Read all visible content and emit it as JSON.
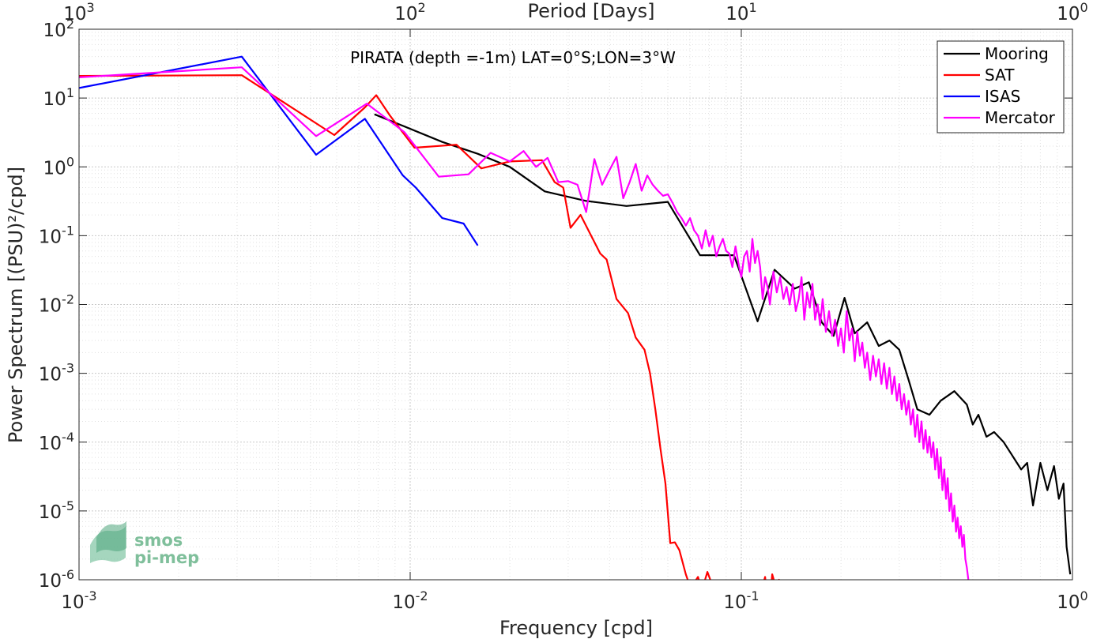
{
  "chart_data": {
    "type": "line",
    "x_scale": "log",
    "y_scale": "log",
    "xlim": [
      0.001,
      1
    ],
    "ylim": [
      1e-06,
      100
    ],
    "grid": true,
    "legend_placement": "top-right",
    "xlabel": "Frequency [cpd]",
    "ylabel": "Power Spectrum [(PSU)²/cpd]",
    "top_axis_label": "Period [Days]",
    "annotation": "PIRATA (depth =-1m) LAT=0°S;LON=3°W",
    "x_ticks": [
      {
        "value": 0.001,
        "base": "10",
        "exp": "-3"
      },
      {
        "value": 0.01,
        "base": "10",
        "exp": "-2"
      },
      {
        "value": 0.1,
        "base": "10",
        "exp": "-1"
      },
      {
        "value": 1,
        "base": "10",
        "exp": "0"
      }
    ],
    "top_ticks": [
      {
        "value": 1000,
        "base": "10",
        "exp": "3"
      },
      {
        "value": 100,
        "base": "10",
        "exp": "2"
      },
      {
        "value": 10,
        "base": "10",
        "exp": "1"
      },
      {
        "value": 1,
        "base": "10",
        "exp": "0"
      }
    ],
    "y_ticks": [
      {
        "value": 100,
        "base": "10",
        "exp": "2"
      },
      {
        "value": 10,
        "base": "10",
        "exp": "1"
      },
      {
        "value": 1,
        "base": "10",
        "exp": "0"
      },
      {
        "value": 0.1,
        "base": "10",
        "exp": "-1"
      },
      {
        "value": 0.01,
        "base": "10",
        "exp": "-2"
      },
      {
        "value": 0.001,
        "base": "10",
        "exp": "-3"
      },
      {
        "value": 0.0001,
        "base": "10",
        "exp": "-4"
      },
      {
        "value": 1e-05,
        "base": "10",
        "exp": "-5"
      },
      {
        "value": 1e-06,
        "base": "10",
        "exp": "-6"
      }
    ],
    "series": [
      {
        "name": "Mooring",
        "color": "#000000",
        "points": [
          [
            0.0078,
            5.8
          ],
          [
            0.0092,
            4.2
          ],
          [
            0.0125,
            2.3
          ],
          [
            0.016,
            1.55
          ],
          [
            0.02,
            1.0
          ],
          [
            0.0255,
            0.44
          ],
          [
            0.034,
            0.32
          ],
          [
            0.045,
            0.27
          ],
          [
            0.06,
            0.31
          ],
          [
            0.075,
            0.052
          ],
          [
            0.095,
            0.052
          ],
          [
            0.102,
            0.02
          ],
          [
            0.112,
            0.0057
          ],
          [
            0.126,
            0.032
          ],
          [
            0.145,
            0.017
          ],
          [
            0.16,
            0.021
          ],
          [
            0.175,
            0.0055
          ],
          [
            0.19,
            0.0035
          ],
          [
            0.205,
            0.0125
          ],
          [
            0.22,
            0.0038
          ],
          [
            0.24,
            0.0055
          ],
          [
            0.26,
            0.0025
          ],
          [
            0.28,
            0.003
          ],
          [
            0.3,
            0.0022
          ],
          [
            0.32,
            0.0008
          ],
          [
            0.34,
            0.0003
          ],
          [
            0.37,
            0.00025
          ],
          [
            0.4,
            0.0004
          ],
          [
            0.44,
            0.00055
          ],
          [
            0.48,
            0.00035
          ],
          [
            0.5,
            0.00018
          ],
          [
            0.52,
            0.00025
          ],
          [
            0.55,
            0.00012
          ],
          [
            0.58,
            0.00014
          ],
          [
            0.62,
            0.0001
          ],
          [
            0.65,
            7e-05
          ],
          [
            0.7,
            4e-05
          ],
          [
            0.73,
            5e-05
          ],
          [
            0.76,
            1.2e-05
          ],
          [
            0.8,
            5e-05
          ],
          [
            0.84,
            2e-05
          ],
          [
            0.88,
            4.5e-05
          ],
          [
            0.91,
            1.5e-05
          ],
          [
            0.94,
            2.5e-05
          ],
          [
            0.96,
            3e-06
          ],
          [
            0.985,
            1.2e-06
          ]
        ]
      },
      {
        "name": "SAT",
        "color": "#ff0000",
        "points": [
          [
            0.001,
            21
          ],
          [
            0.0031,
            21.5
          ],
          [
            0.0059,
            2.9
          ],
          [
            0.0073,
            7.3
          ],
          [
            0.0079,
            11
          ],
          [
            0.0087,
            5.5
          ],
          [
            0.0103,
            1.9
          ],
          [
            0.0138,
            2.1
          ],
          [
            0.0164,
            0.95
          ],
          [
            0.02,
            1.2
          ],
          [
            0.025,
            1.25
          ],
          [
            0.0273,
            0.6
          ],
          [
            0.029,
            0.5
          ],
          [
            0.0305,
            0.13
          ],
          [
            0.0327,
            0.2
          ],
          [
            0.0375,
            0.055
          ],
          [
            0.0392,
            0.045
          ],
          [
            0.042,
            0.012
          ],
          [
            0.0455,
            0.0075
          ],
          [
            0.048,
            0.0033
          ],
          [
            0.051,
            0.0022
          ],
          [
            0.053,
            0.001
          ],
          [
            0.055,
            0.0003
          ],
          [
            0.057,
            8e-05
          ],
          [
            0.059,
            2.5e-05
          ],
          [
            0.061,
            3.4e-06
          ],
          [
            0.063,
            3.5e-06
          ],
          [
            0.065,
            2.7e-06
          ],
          [
            0.068,
            1.2e-06
          ],
          [
            0.07,
            8e-07
          ],
          [
            0.072,
            9e-07
          ],
          [
            0.074,
            1.1e-06
          ],
          [
            0.076,
            7e-07
          ],
          [
            0.079,
            1.3e-06
          ],
          [
            0.082,
            8e-07
          ],
          [
            0.085,
            7e-07
          ],
          [
            0.088,
            6e-07
          ],
          [
            0.091,
            9e-07
          ],
          [
            0.094,
            5e-07
          ],
          [
            0.097,
            9e-07
          ],
          [
            0.1,
            6e-07
          ],
          [
            0.103,
            9e-07
          ],
          [
            0.106,
            3e-07
          ],
          [
            0.109,
            9e-07
          ],
          [
            0.112,
            8e-07
          ],
          [
            0.115,
            7e-07
          ],
          [
            0.118,
            1.1e-06
          ],
          [
            0.121,
            3e-07
          ],
          [
            0.124,
            1.2e-06
          ],
          [
            0.127,
            8e-07
          ],
          [
            0.13,
            1e-06
          ],
          [
            0.132,
            2e-07
          ]
        ]
      },
      {
        "name": "ISAS",
        "color": "#0000ff",
        "points": [
          [
            0.001,
            14
          ],
          [
            0.0031,
            40
          ],
          [
            0.0052,
            1.5
          ],
          [
            0.0073,
            5.0
          ],
          [
            0.0095,
            0.75
          ],
          [
            0.0104,
            0.5
          ],
          [
            0.0125,
            0.18
          ],
          [
            0.0145,
            0.15
          ],
          [
            0.016,
            0.072
          ]
        ]
      },
      {
        "name": "Mercator",
        "color": "#ff00ff",
        "points": [
          [
            0.001,
            20
          ],
          [
            0.0031,
            28
          ],
          [
            0.0052,
            2.8
          ],
          [
            0.0074,
            8.3
          ],
          [
            0.0096,
            3.2
          ],
          [
            0.0122,
            0.72
          ],
          [
            0.015,
            0.78
          ],
          [
            0.0175,
            1.6
          ],
          [
            0.02,
            1.2
          ],
          [
            0.022,
            1.7
          ],
          [
            0.024,
            1.0
          ],
          [
            0.026,
            1.35
          ],
          [
            0.028,
            0.6
          ],
          [
            0.03,
            0.62
          ],
          [
            0.032,
            0.55
          ],
          [
            0.034,
            0.22
          ],
          [
            0.036,
            1.3
          ],
          [
            0.038,
            0.55
          ],
          [
            0.04,
            0.9
          ],
          [
            0.042,
            1.4
          ],
          [
            0.044,
            0.35
          ],
          [
            0.046,
            0.6
          ],
          [
            0.048,
            1.1
          ],
          [
            0.05,
            0.45
          ],
          [
            0.052,
            0.75
          ],
          [
            0.054,
            0.55
          ],
          [
            0.056,
            0.45
          ],
          [
            0.058,
            0.38
          ],
          [
            0.06,
            0.4
          ],
          [
            0.062,
            0.3
          ],
          [
            0.064,
            0.22
          ],
          [
            0.066,
            0.18
          ],
          [
            0.068,
            0.14
          ],
          [
            0.07,
            0.18
          ],
          [
            0.072,
            0.12
          ],
          [
            0.074,
            0.1
          ],
          [
            0.076,
            0.065
          ],
          [
            0.078,
            0.12
          ],
          [
            0.08,
            0.07
          ],
          [
            0.082,
            0.1
          ],
          [
            0.084,
            0.05
          ],
          [
            0.086,
            0.07
          ],
          [
            0.088,
            0.09
          ],
          [
            0.09,
            0.06
          ],
          [
            0.092,
            0.055
          ],
          [
            0.094,
            0.035
          ],
          [
            0.096,
            0.07
          ],
          [
            0.098,
            0.04
          ],
          [
            0.1,
            0.025
          ],
          [
            0.102,
            0.05
          ],
          [
            0.104,
            0.06
          ],
          [
            0.106,
            0.03
          ],
          [
            0.108,
            0.09
          ],
          [
            0.11,
            0.04
          ],
          [
            0.112,
            0.06
          ],
          [
            0.114,
            0.035
          ],
          [
            0.116,
            0.012
          ],
          [
            0.118,
            0.025
          ],
          [
            0.12,
            0.018
          ],
          [
            0.122,
            0.01
          ],
          [
            0.125,
            0.03
          ],
          [
            0.128,
            0.015
          ],
          [
            0.131,
            0.025
          ],
          [
            0.134,
            0.012
          ],
          [
            0.137,
            0.018
          ],
          [
            0.14,
            0.01
          ],
          [
            0.143,
            0.02
          ],
          [
            0.146,
            0.008
          ],
          [
            0.149,
            0.012
          ],
          [
            0.152,
            0.025
          ],
          [
            0.155,
            0.006
          ],
          [
            0.158,
            0.015
          ],
          [
            0.161,
            0.009
          ],
          [
            0.164,
            0.02
          ],
          [
            0.167,
            0.006
          ],
          [
            0.17,
            0.01
          ],
          [
            0.173,
            0.005
          ],
          [
            0.176,
            0.012
          ],
          [
            0.18,
            0.004
          ],
          [
            0.184,
            0.008
          ],
          [
            0.188,
            0.0035
          ],
          [
            0.192,
            0.006
          ],
          [
            0.196,
            0.0025
          ],
          [
            0.2,
            0.0045
          ],
          [
            0.204,
            0.002
          ],
          [
            0.208,
            0.008
          ],
          [
            0.212,
            0.003
          ],
          [
            0.216,
            0.0045
          ],
          [
            0.22,
            0.0015
          ],
          [
            0.224,
            0.004
          ],
          [
            0.228,
            0.0018
          ],
          [
            0.232,
            0.0028
          ],
          [
            0.236,
            0.0012
          ],
          [
            0.24,
            0.002
          ],
          [
            0.245,
            0.0008
          ],
          [
            0.25,
            0.0018
          ],
          [
            0.255,
            0.0009
          ],
          [
            0.26,
            0.0016
          ],
          [
            0.265,
            0.0007
          ],
          [
            0.27,
            0.0014
          ],
          [
            0.275,
            0.0006
          ],
          [
            0.28,
            0.0012
          ],
          [
            0.285,
            0.0005
          ],
          [
            0.29,
            0.0009
          ],
          [
            0.295,
            0.0004
          ],
          [
            0.3,
            0.0007
          ],
          [
            0.305,
            0.0003
          ],
          [
            0.31,
            0.0005
          ],
          [
            0.315,
            0.00025
          ],
          [
            0.32,
            0.0004
          ],
          [
            0.325,
            0.00018
          ],
          [
            0.33,
            0.0003
          ],
          [
            0.335,
            0.00012
          ],
          [
            0.34,
            0.00025
          ],
          [
            0.345,
            0.0001
          ],
          [
            0.35,
            0.0002
          ],
          [
            0.355,
            8e-05
          ],
          [
            0.36,
            0.00015
          ],
          [
            0.365,
            7e-05
          ],
          [
            0.37,
            0.00012
          ],
          [
            0.375,
            6e-05
          ],
          [
            0.38,
            0.0001
          ],
          [
            0.385,
            4e-05
          ],
          [
            0.39,
            8e-05
          ],
          [
            0.395,
            3e-05
          ],
          [
            0.4,
            6e-05
          ],
          [
            0.405,
            2e-05
          ],
          [
            0.41,
            4e-05
          ],
          [
            0.415,
            1.5e-05
          ],
          [
            0.42,
            3e-05
          ],
          [
            0.425,
            1e-05
          ],
          [
            0.43,
            1.8e-05
          ],
          [
            0.435,
            7e-06
          ],
          [
            0.44,
            1.2e-05
          ],
          [
            0.445,
            5e-06
          ],
          [
            0.45,
            8e-06
          ],
          [
            0.455,
            4e-06
          ],
          [
            0.46,
            6e-06
          ],
          [
            0.465,
            3e-06
          ],
          [
            0.47,
            4.5e-06
          ],
          [
            0.475,
            2e-06
          ],
          [
            0.48,
            1.5e-06
          ],
          [
            0.485,
            1e-06
          ]
        ]
      }
    ]
  },
  "logo": {
    "line1": "smos",
    "line2": "pi-mep"
  }
}
